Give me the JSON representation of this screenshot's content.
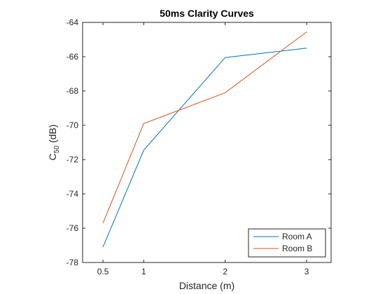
{
  "chart_data": {
    "type": "line",
    "title": "50ms Clarity Curves",
    "xlabel": "Distance (m)",
    "ylabel": {
      "base": "C",
      "subscript": "50",
      "suffix": " (dB)"
    },
    "xlim": [
      0.25,
      3.3
    ],
    "ylim": [
      -78,
      -64
    ],
    "xticks": [
      0.5,
      1,
      2,
      3
    ],
    "xtick_labels": [
      "0.5",
      "1",
      "2",
      "3"
    ],
    "yticks": [
      -78,
      -76,
      -74,
      -72,
      -70,
      -68,
      -66,
      -64
    ],
    "ytick_labels": [
      "-78",
      "-76",
      "-74",
      "-72",
      "-70",
      "-68",
      "-66",
      "-64"
    ],
    "x": [
      0.5,
      1,
      2,
      3
    ],
    "series": [
      {
        "name": "Room A",
        "color": "#0072BD",
        "values": [
          -77.1,
          -71.45,
          -66.05,
          -65.5
        ]
      },
      {
        "name": "Room B",
        "color": "#D95319",
        "values": [
          -75.7,
          -69.9,
          -68.1,
          -64.55
        ]
      }
    ],
    "legend": {
      "position": "bottom-right"
    },
    "grid": false
  }
}
